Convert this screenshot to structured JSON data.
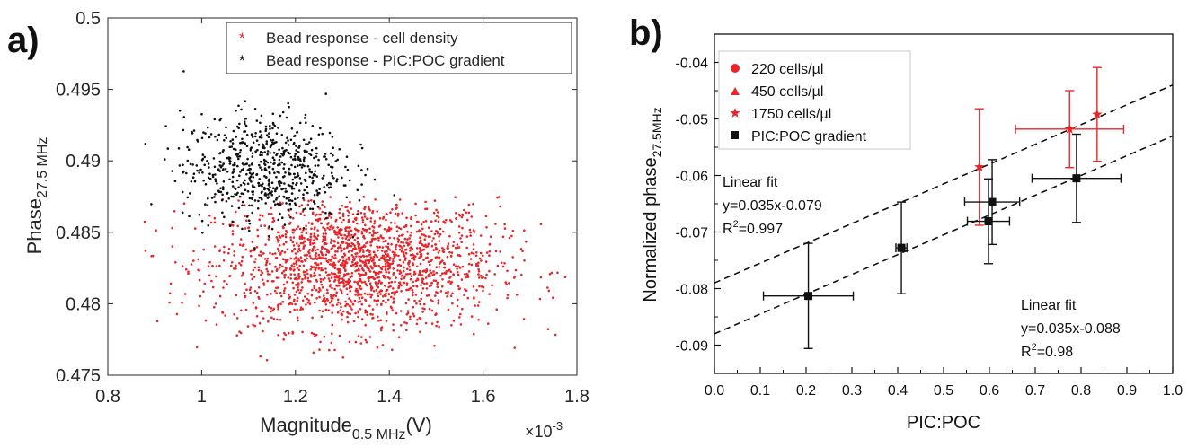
{
  "panels": {
    "a": {
      "letter": "a)",
      "legend": [
        "Bead response - cell density",
        "Bead response - PIC:POC gradient"
      ],
      "xlabel": {
        "main": "Magnitude",
        "sub": "0.5 MHz",
        "post": "(V)"
      },
      "ylabel": {
        "main": "Phase",
        "sub": "27.5 MHz"
      },
      "x_multiplier": {
        "base": "×10",
        "exp": "-3"
      }
    },
    "b": {
      "letter": "b)",
      "xlabel": "PIC:POC",
      "ylabel": {
        "main": "Normalized phase",
        "sub": "27.5MHz"
      },
      "legend": [
        "220 cells/µl",
        "450 cells/µl",
        "1750 cells/µl",
        "PIC:POC gradient"
      ],
      "fit1": {
        "title": "Linear fit",
        "eq": "y=0.035x-0.079",
        "r2_prefix": "R",
        "r2_sup": "2",
        "r2_value": "=0.997"
      },
      "fit2": {
        "title": "Linear fit",
        "eq": "y=0.035x-0.088",
        "r2_prefix": "R",
        "r2_sup": "2",
        "r2_value": "=0.98"
      }
    }
  },
  "colors": {
    "red": "#e8262a",
    "black": "#111111"
  },
  "chart_data": [
    {
      "type": "scatter",
      "title": "",
      "xlabel": "Magnitude0.5 MHz(V) ×10^-3",
      "ylabel": "Phase27.5 MHz",
      "xlim": [
        0.8,
        1.8
      ],
      "ylim": [
        0.475,
        0.5
      ],
      "x_ticks": [
        "0.8",
        "1",
        "1.2",
        "1.4",
        "1.6",
        "1.8"
      ],
      "y_ticks": [
        "0.475",
        "0.48",
        "0.485",
        "0.49",
        "0.495",
        "0.5"
      ],
      "grid": false,
      "legend_position": "top-right",
      "series": [
        {
          "name": "Bead response - cell density",
          "color": "#e8262a",
          "points": 1900,
          "center": [
            1.33,
            0.4828
          ],
          "spread": [
            0.15,
            0.0023
          ],
          "x_range": [
            0.84,
            1.79
          ],
          "y_range": [
            0.4757,
            0.4875
          ]
        },
        {
          "name": "Bead response - PIC:POC gradient",
          "color": "#111111",
          "points": 650,
          "center": [
            1.13,
            0.4895
          ],
          "spread": [
            0.085,
            0.0019
          ],
          "x_range": [
            0.88,
            1.42
          ],
          "y_range": [
            0.4838,
            0.4972
          ]
        }
      ]
    },
    {
      "type": "scatter",
      "title": "",
      "xlabel": "PIC:POC",
      "ylabel": "Normalized phase27.5MHz",
      "xlim": [
        0.0,
        1.0
      ],
      "ylim": [
        -0.095,
        -0.035
      ],
      "x_ticks": [
        "0.0",
        "0.1",
        "0.2",
        "0.3",
        "0.4",
        "0.5",
        "0.6",
        "0.7",
        "0.8",
        "0.9",
        "1.0"
      ],
      "y_ticks": [
        "-0.09",
        "-0.08",
        "-0.07",
        "-0.06",
        "-0.05",
        "-0.04"
      ],
      "grid": false,
      "legend_position": "top-left",
      "series": [
        {
          "name": "PIC:POC gradient",
          "marker": "square",
          "color": "#111111",
          "points": [
            {
              "x": 0.205,
              "y": -0.0813,
              "xerr": 0.098,
              "yerr": 0.0093
            },
            {
              "x": 0.408,
              "y": -0.0728,
              "xerr": 0.012,
              "yerr": 0.0081
            },
            {
              "x": 0.598,
              "y": -0.0681,
              "xerr": 0.046,
              "yerr": 0.0075
            },
            {
              "x": 0.606,
              "y": -0.0647,
              "xerr": 0.06,
              "yerr": 0.0075
            },
            {
              "x": 0.79,
              "y": -0.0605,
              "xerr": 0.097,
              "yerr": 0.0078
            }
          ]
        },
        {
          "name": "220 cells/µl",
          "marker": "circle",
          "color": "#e8262a",
          "points": []
        },
        {
          "name": "450 cells/µl",
          "marker": "triangle",
          "color": "#e8262a",
          "points": []
        },
        {
          "name": "1750 cells/µl",
          "marker": "star",
          "color": "#e8262a",
          "points": [
            {
              "x": 0.578,
              "y": -0.0585,
              "xerr": 0.0,
              "yerr": 0.0103
            },
            {
              "x": 0.775,
              "y": -0.0518,
              "xerr": 0.118,
              "yerr": 0.0068
            },
            {
              "x": 0.835,
              "y": -0.0492,
              "xerr": 0.0,
              "yerr": 0.0083
            }
          ]
        }
      ],
      "fits": [
        {
          "slope": 0.035,
          "intercept": -0.079
        },
        {
          "slope": 0.035,
          "intercept": -0.088
        }
      ]
    }
  ]
}
